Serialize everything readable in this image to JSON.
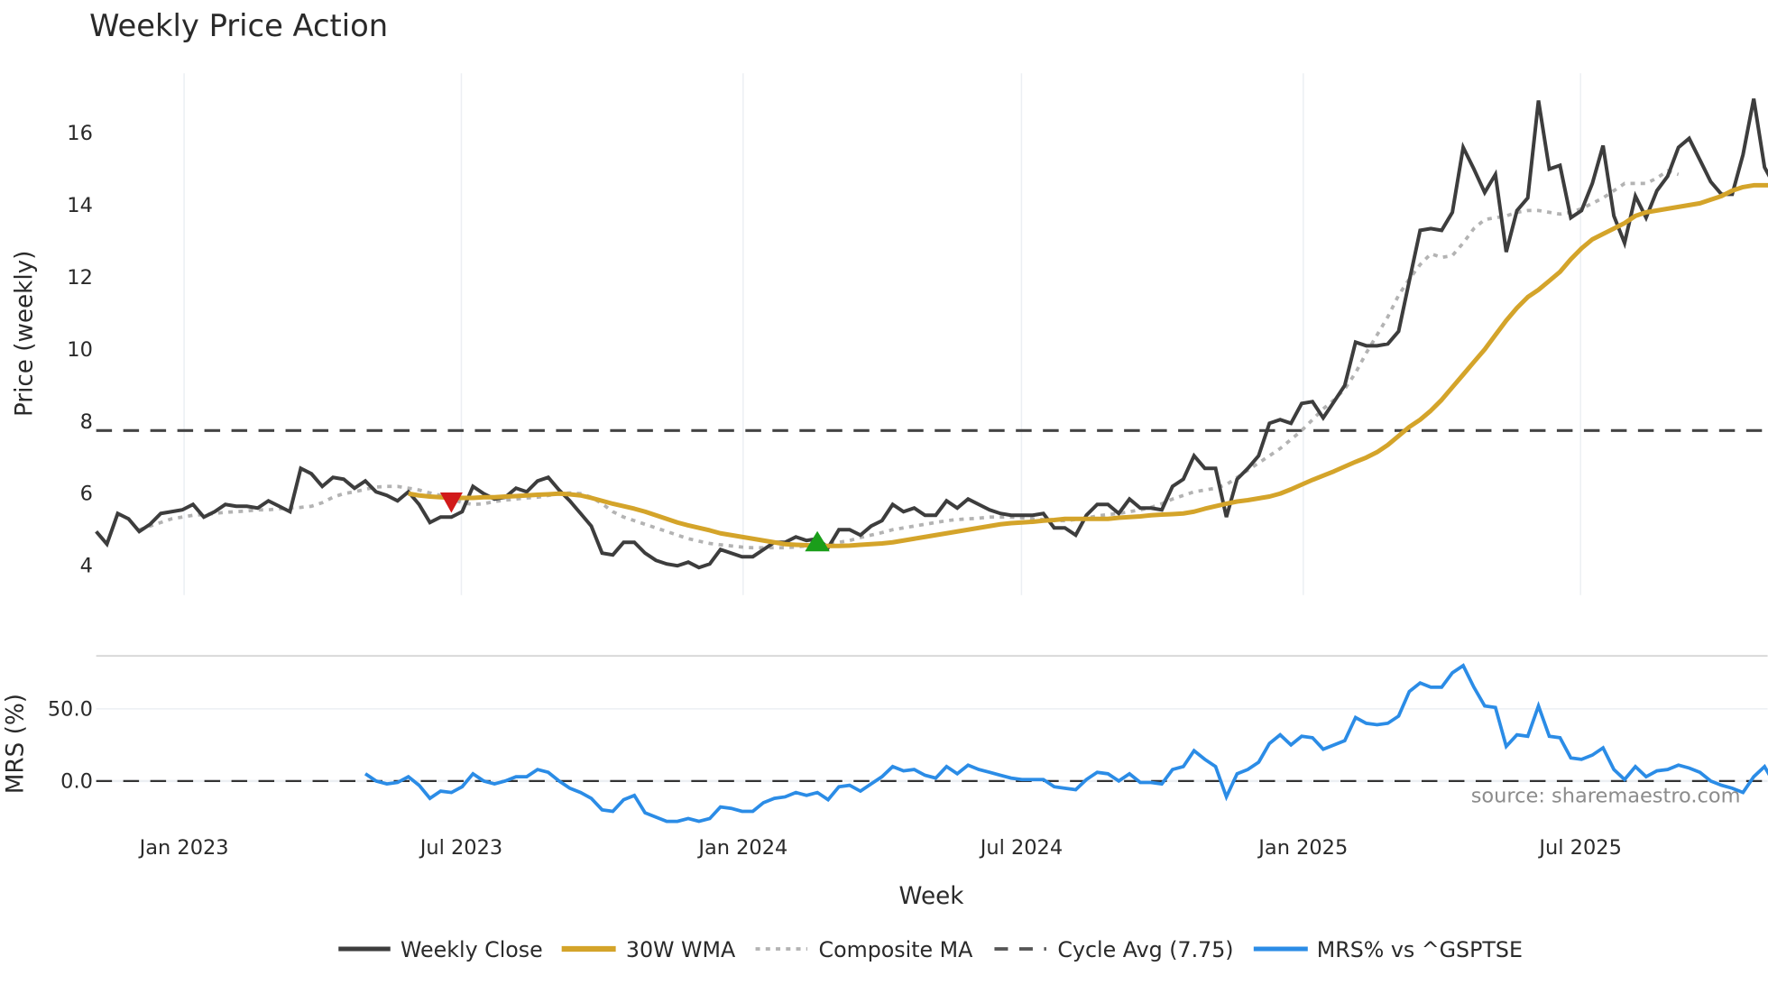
{
  "title": "Weekly Price Action",
  "watermark": "source: sharemaestro.com",
  "colors": {
    "weekly_close": "#3d3d3d",
    "wma": "#d4a42a",
    "composite_ma": "#b3b3b3",
    "cycle_avg": "#444444",
    "mrs": "#2b8ce6",
    "sell_marker": "#d11a1a",
    "buy_marker": "#1a9e1a",
    "grid": "#eceff3"
  },
  "legend": [
    {
      "label": "Weekly Close",
      "style": "solid",
      "color": "#3d3d3d"
    },
    {
      "label": "30W WMA",
      "style": "solid",
      "color": "#d4a42a"
    },
    {
      "label": "Composite MA",
      "style": "dotted",
      "color": "#b3b3b3"
    },
    {
      "label": "Cycle Avg (7.75)",
      "style": "dashed",
      "color": "#444444"
    },
    {
      "label": "MRS% vs ^GSPTSE",
      "style": "solid",
      "color": "#2b8ce6"
    }
  ],
  "chart_data": [
    {
      "type": "line",
      "title": "Weekly Price Action",
      "xlabel": "Week",
      "ylabel": "Price (weekly)",
      "ylim": [
        3.2,
        17.6
      ],
      "yticks": [
        4,
        6,
        8,
        10,
        12,
        14,
        16
      ],
      "xticks": [
        "Jan 2023",
        "Jul 2023",
        "Jan 2024",
        "Jul 2024",
        "Jan 2025",
        "Jul 2025"
      ],
      "grid": true,
      "legend_position": "bottom",
      "x_start": "Nov 2022",
      "x_step": "1 week",
      "series": [
        {
          "name": "Weekly Close",
          "values": [
            4.95,
            4.6,
            5.45,
            5.3,
            4.95,
            5.15,
            5.45,
            5.5,
            5.55,
            5.7,
            5.35,
            5.5,
            5.7,
            5.65,
            5.65,
            5.6,
            5.8,
            5.65,
            5.5,
            6.7,
            6.55,
            6.2,
            6.45,
            6.4,
            6.15,
            6.35,
            6.05,
            5.95,
            5.8,
            6.05,
            5.7,
            5.2,
            5.35,
            5.35,
            5.5,
            6.2,
            6.0,
            5.85,
            5.9,
            6.15,
            6.05,
            6.35,
            6.45,
            6.1,
            5.8,
            5.45,
            5.1,
            4.35,
            4.3,
            4.65,
            4.65,
            4.35,
            4.15,
            4.05,
            4.0,
            4.1,
            3.95,
            4.05,
            4.45,
            4.35,
            4.25,
            4.25,
            4.45,
            4.65,
            4.65,
            4.8,
            4.7,
            4.75,
            4.5,
            5.0,
            5.0,
            4.85,
            5.1,
            5.25,
            5.7,
            5.5,
            5.6,
            5.4,
            5.4,
            5.8,
            5.6,
            5.85,
            5.7,
            5.55,
            5.45,
            5.4,
            5.4,
            5.4,
            5.45,
            5.05,
            5.05,
            4.85,
            5.4,
            5.7,
            5.7,
            5.45,
            5.85,
            5.6,
            5.6,
            5.55,
            6.2,
            6.4,
            7.05,
            6.7,
            6.7,
            5.35,
            6.4,
            6.7,
            7.05,
            7.95,
            8.05,
            7.95,
            8.5,
            8.55,
            8.1,
            8.55,
            9.0,
            10.2,
            10.1,
            10.1,
            10.15,
            10.5,
            11.9,
            13.3,
            13.35,
            13.3,
            13.8,
            15.6,
            15.0,
            14.35,
            14.85,
            12.7,
            13.85,
            14.2,
            16.9,
            15.0,
            15.1,
            13.65,
            13.85,
            14.6,
            15.65,
            13.7,
            12.95,
            14.25,
            13.65,
            14.4,
            14.8,
            15.6,
            15.85,
            15.25,
            14.65,
            14.3,
            14.3,
            15.4,
            16.95,
            15.05,
            14.5
          ]
        },
        {
          "name": "30W WMA",
          "start_index": 29,
          "values": [
            6.0,
            5.95,
            5.92,
            5.9,
            5.88,
            5.88,
            5.88,
            5.9,
            5.9,
            5.92,
            5.93,
            5.95,
            5.97,
            5.98,
            6.0,
            5.98,
            5.95,
            5.88,
            5.8,
            5.72,
            5.65,
            5.58,
            5.5,
            5.4,
            5.3,
            5.2,
            5.12,
            5.05,
            4.98,
            4.9,
            4.85,
            4.8,
            4.75,
            4.7,
            4.65,
            4.6,
            4.58,
            4.57,
            4.56,
            4.55,
            4.55,
            4.56,
            4.58,
            4.6,
            4.62,
            4.65,
            4.7,
            4.75,
            4.8,
            4.85,
            4.9,
            4.95,
            5.0,
            5.05,
            5.1,
            5.15,
            5.18,
            5.2,
            5.22,
            5.25,
            5.27,
            5.3,
            5.3,
            5.3,
            5.3,
            5.3,
            5.33,
            5.35,
            5.37,
            5.4,
            5.42,
            5.43,
            5.45,
            5.5,
            5.58,
            5.65,
            5.72,
            5.78,
            5.82,
            5.87,
            5.92,
            6.0,
            6.12,
            6.25,
            6.38,
            6.5,
            6.62,
            6.75,
            6.88,
            7.0,
            7.15,
            7.35,
            7.6,
            7.85,
            8.05,
            8.3,
            8.6,
            8.95,
            9.3,
            9.65,
            10.0,
            10.4,
            10.8,
            11.15,
            11.45,
            11.65,
            11.9,
            12.15,
            12.5,
            12.8,
            13.05,
            13.2,
            13.35,
            13.5,
            13.7,
            13.8,
            13.85,
            13.9,
            13.95,
            14.0,
            14.05,
            14.15,
            14.25,
            14.4,
            14.5,
            14.55,
            14.55,
            14.55,
            14.6,
            14.75,
            14.8,
            14.78
          ]
        },
        {
          "name": "Composite MA",
          "start_index": 4,
          "values": [
            5.0,
            5.1,
            5.2,
            5.3,
            5.35,
            5.4,
            5.42,
            5.45,
            5.48,
            5.5,
            5.52,
            5.55,
            5.55,
            5.58,
            5.6,
            5.62,
            5.65,
            5.75,
            5.9,
            6.0,
            6.05,
            6.12,
            6.18,
            6.2,
            6.2,
            6.15,
            6.1,
            6.02,
            5.95,
            5.85,
            5.75,
            5.7,
            5.72,
            5.78,
            5.82,
            5.85,
            5.88,
            5.9,
            5.95,
            6.0,
            6.02,
            6.0,
            5.9,
            5.72,
            5.5,
            5.35,
            5.25,
            5.15,
            5.05,
            4.95,
            4.85,
            4.75,
            4.68,
            4.62,
            4.58,
            4.55,
            4.52,
            4.5,
            4.5,
            4.5,
            4.5,
            4.52,
            4.55,
            4.6,
            4.62,
            4.65,
            4.7,
            4.78,
            4.85,
            4.92,
            5.0,
            5.05,
            5.1,
            5.15,
            5.2,
            5.25,
            5.28,
            5.3,
            5.32,
            5.35,
            5.35,
            5.35,
            5.33,
            5.3,
            5.28,
            5.25,
            5.25,
            5.28,
            5.32,
            5.38,
            5.42,
            5.45,
            5.5,
            5.55,
            5.62,
            5.72,
            5.85,
            5.95,
            6.05,
            6.1,
            6.15,
            6.25,
            6.45,
            6.65,
            6.85,
            7.05,
            7.25,
            7.5,
            7.75,
            8.05,
            8.35,
            8.6,
            8.9,
            9.35,
            9.9,
            10.4,
            10.9,
            11.5,
            11.95,
            12.35,
            12.65,
            12.55,
            12.6,
            12.95,
            13.35,
            13.6,
            13.65,
            13.7,
            13.8,
            13.85,
            13.85,
            13.8,
            13.75,
            13.8,
            13.9,
            14.05,
            14.2,
            14.4,
            14.6,
            14.6,
            14.6,
            14.75,
            14.95,
            14.85
          ]
        },
        {
          "name": "Cycle Avg (7.75)",
          "constant": 7.75
        }
      ],
      "markers": [
        {
          "type": "sell",
          "shape": "triangle-down",
          "color": "#d11a1a",
          "index": 33,
          "price": 5.75
        },
        {
          "type": "buy",
          "shape": "triangle-up",
          "color": "#1a9e1a",
          "index": 67,
          "price": 4.65
        }
      ]
    },
    {
      "type": "line",
      "title": "",
      "xlabel": "Week",
      "ylabel": "MRS (%)",
      "ylim": [
        -37,
        85
      ],
      "yticks": [
        0.0,
        50.0
      ],
      "ytick_labels": [
        "0.0",
        "50.0"
      ],
      "xticks": [
        "Jan 2023",
        "Jul 2023",
        "Jan 2024",
        "Jul 2024",
        "Jan 2025",
        "Jul 2025"
      ],
      "grid": true,
      "zero_line": "dashed",
      "series": [
        {
          "name": "MRS% vs ^GSPTSE",
          "start_index": 25,
          "values": [
            5,
            0,
            -2,
            -1,
            3,
            -3,
            -12,
            -7,
            -8,
            -4,
            5,
            0,
            -2,
            0,
            3,
            3,
            8,
            6,
            0,
            -5,
            -8,
            -12,
            -20,
            -21,
            -13,
            -10,
            -22,
            -25,
            -28,
            -28,
            -26,
            -28,
            -26,
            -18,
            -19,
            -21,
            -21,
            -15,
            -12,
            -11,
            -8,
            -10,
            -8,
            -13,
            -4,
            -3,
            -7,
            -2,
            3,
            10,
            7,
            8,
            4,
            2,
            10,
            5,
            11,
            8,
            6,
            4,
            2,
            1,
            1,
            1,
            -4,
            -5,
            -6,
            1,
            6,
            5,
            0,
            5,
            -1,
            -1,
            -2,
            8,
            10,
            21,
            15,
            10,
            -11,
            5,
            8,
            13,
            26,
            32,
            25,
            31,
            30,
            22,
            25,
            28,
            44,
            40,
            39,
            40,
            45,
            62,
            68,
            65,
            65,
            75,
            80,
            65,
            52,
            51,
            24,
            32,
            31,
            52,
            31,
            30,
            16,
            15,
            18,
            23,
            8,
            1,
            10,
            3,
            7,
            8,
            11,
            9,
            6,
            0,
            -3,
            -5,
            -8,
            3,
            10,
            -3,
            -6
          ]
        }
      ]
    }
  ],
  "axes": {
    "price_yticks": [
      "4",
      "6",
      "8",
      "10",
      "12",
      "14",
      "16"
    ],
    "mrs_yticks": [
      "0.0",
      "50.0"
    ],
    "xticks": [
      "Jan 2023",
      "Jul 2023",
      "Jan 2024",
      "Jul 2024",
      "Jan 2025",
      "Jul 2025"
    ],
    "price_ylabel": "Price (weekly)",
    "mrs_ylabel": "MRS (%)",
    "xlabel": "Week"
  }
}
